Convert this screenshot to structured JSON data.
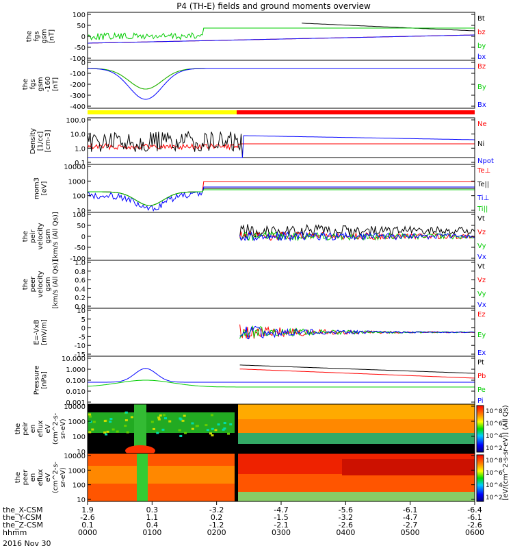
{
  "title": "P4 (TH-E) fields and ground moments overview",
  "date": "2016 Nov 30",
  "colors": {
    "black": "#000000",
    "red": "#ff0000",
    "green": "#00cc00",
    "blue": "#0000ff",
    "yellow": "#ffff00"
  },
  "chart_data": [
    {
      "id": "p1",
      "type": "line",
      "ylabel": [
        "the",
        "fgs",
        "gsm",
        "[nT]"
      ],
      "yticks": [
        "100",
        "50",
        "0",
        "-50",
        "-100"
      ],
      "ylim": [
        -100,
        100
      ],
      "series": [
        {
          "name": "Bt",
          "color": "#000000"
        },
        {
          "name": "bz",
          "color": "#ff0000"
        },
        {
          "name": "by",
          "color": "#00cc00"
        },
        {
          "name": "bx",
          "color": "#0000ff"
        }
      ]
    },
    {
      "id": "p2",
      "type": "line",
      "ylabel": [
        "the",
        "fgs",
        "gsm",
        "-160",
        "[nT]"
      ],
      "yticks": [
        "0",
        "-100",
        "-200",
        "-300",
        "-400"
      ],
      "ylim": [
        -450,
        30
      ],
      "series": [
        {
          "name": "Bz",
          "color": "#ff0000"
        },
        {
          "name": "By",
          "color": "#00cc00"
        },
        {
          "name": "Bx",
          "color": "#0000ff"
        }
      ]
    },
    {
      "id": "p3",
      "type": "line",
      "ylabel": [
        "Density",
        "[1/cc]",
        "[cm-3]"
      ],
      "yticks": [
        "100.0",
        "10.0",
        "1.0",
        "0.1"
      ],
      "ylim": [
        0.02,
        300
      ],
      "yscale": "log",
      "series": [
        {
          "name": "Ne",
          "color": "#ff0000"
        },
        {
          "name": "Ni",
          "color": "#000000"
        },
        {
          "name": "Npot",
          "color": "#0000ff"
        }
      ]
    },
    {
      "id": "p4",
      "type": "line",
      "ylabel": [
        "mom3",
        "[eV]"
      ],
      "yticks": [
        "10000",
        "1000",
        "100",
        "10"
      ],
      "ylim": [
        3,
        10000
      ],
      "yscale": "log",
      "series": [
        {
          "name": "Te⊥",
          "color": "#ff0000"
        },
        {
          "name": "Te||",
          "color": "#000000"
        },
        {
          "name": "Ti⊥",
          "color": "#0000ff"
        },
        {
          "name": "Ti||",
          "color": "#00cc00"
        }
      ]
    },
    {
      "id": "p5",
      "type": "line",
      "ylabel": [
        "the",
        "peir",
        "velocity",
        "gsm",
        "[km/s (All Qs)]"
      ],
      "yticks": [
        "100",
        "50",
        "0",
        "-50",
        "-100"
      ],
      "ylim": [
        -100,
        100
      ],
      "series": [
        {
          "name": "Vt",
          "color": "#000000"
        },
        {
          "name": "Vz",
          "color": "#ff0000"
        },
        {
          "name": "Vy",
          "color": "#00cc00"
        },
        {
          "name": "Vx",
          "color": "#0000ff"
        }
      ]
    },
    {
      "id": "p6",
      "type": "line",
      "ylabel": [
        "the",
        "peer",
        "velocity",
        "gsm",
        "[km/s (All Qs)]"
      ],
      "yticks": [
        "1.0",
        "0.8",
        "0.6",
        "0.4",
        "0.2",
        "0.0"
      ],
      "ylim": [
        0,
        1
      ],
      "series": [
        {
          "name": "Vt",
          "color": "#000000"
        },
        {
          "name": "Vz",
          "color": "#ff0000"
        },
        {
          "name": "Vy",
          "color": "#00cc00"
        },
        {
          "name": "Vx",
          "color": "#0000ff"
        }
      ]
    },
    {
      "id": "p7",
      "type": "line",
      "ylabel": [
        "E=-VxB",
        "[mV/m]"
      ],
      "yticks": [
        "10",
        "5",
        "0",
        "-5",
        "-10",
        "-15"
      ],
      "ylim": [
        -15,
        10
      ],
      "series": [
        {
          "name": "Ez",
          "color": "#ff0000"
        },
        {
          "name": "Ey",
          "color": "#00cc00"
        },
        {
          "name": "Ex",
          "color": "#0000ff"
        }
      ]
    },
    {
      "id": "p8",
      "type": "line",
      "ylabel": [
        "Pressure",
        "[nPa]"
      ],
      "yticks": [
        "10.000",
        "1.000",
        "0.100",
        "0.010",
        "0.001"
      ],
      "ylim": [
        0.001,
        30
      ],
      "yscale": "log",
      "series": [
        {
          "name": "Pt",
          "color": "#000000"
        },
        {
          "name": "Pb",
          "color": "#ff0000"
        },
        {
          "name": "Pe",
          "color": "#00cc00"
        },
        {
          "name": "Pi",
          "color": "#0000ff"
        }
      ]
    },
    {
      "id": "p9",
      "type": "heatmap",
      "ylabel": [
        "the",
        "peir",
        "en",
        "eflux",
        "eV",
        "(cm^2-s-",
        "sr-eV)"
      ],
      "yticks": [
        "10000",
        "1000",
        "100",
        "10"
      ]
    },
    {
      "id": "p10",
      "type": "heatmap",
      "ylabel": [
        "the",
        "peer",
        "en",
        "eflux",
        "eV",
        "(cm^2-s-",
        "sr-eV)"
      ],
      "yticks": [
        "10000",
        "1000",
        "100",
        "10"
      ]
    }
  ],
  "colorbar": {
    "label": "[eV/(cm^2-s-sr-eV)] (All Qs)",
    "ticks": [
      "10^8",
      "10^6",
      "10^4",
      "10^2"
    ]
  },
  "xaxis": {
    "row_labels": [
      "the_X-CSM",
      "the_Y-CSM",
      "the_Z-CSM",
      "hhmm"
    ],
    "columns": [
      [
        "1.9",
        "-2.6",
        "0.1",
        "0000"
      ],
      [
        "0.3",
        "1.1",
        "0.4",
        "0100"
      ],
      [
        "-3.2",
        "0.2",
        "-1.2",
        "0200"
      ],
      [
        "-4.7",
        "-1.5",
        "-2.1",
        "0300"
      ],
      [
        "-5.6",
        "-3.2",
        "-2.6",
        "0400"
      ],
      [
        "-6.1",
        "-4.7",
        "-2.7",
        "0500"
      ],
      [
        "-6.4",
        "-6.1",
        "-2.6",
        "0600"
      ]
    ]
  }
}
